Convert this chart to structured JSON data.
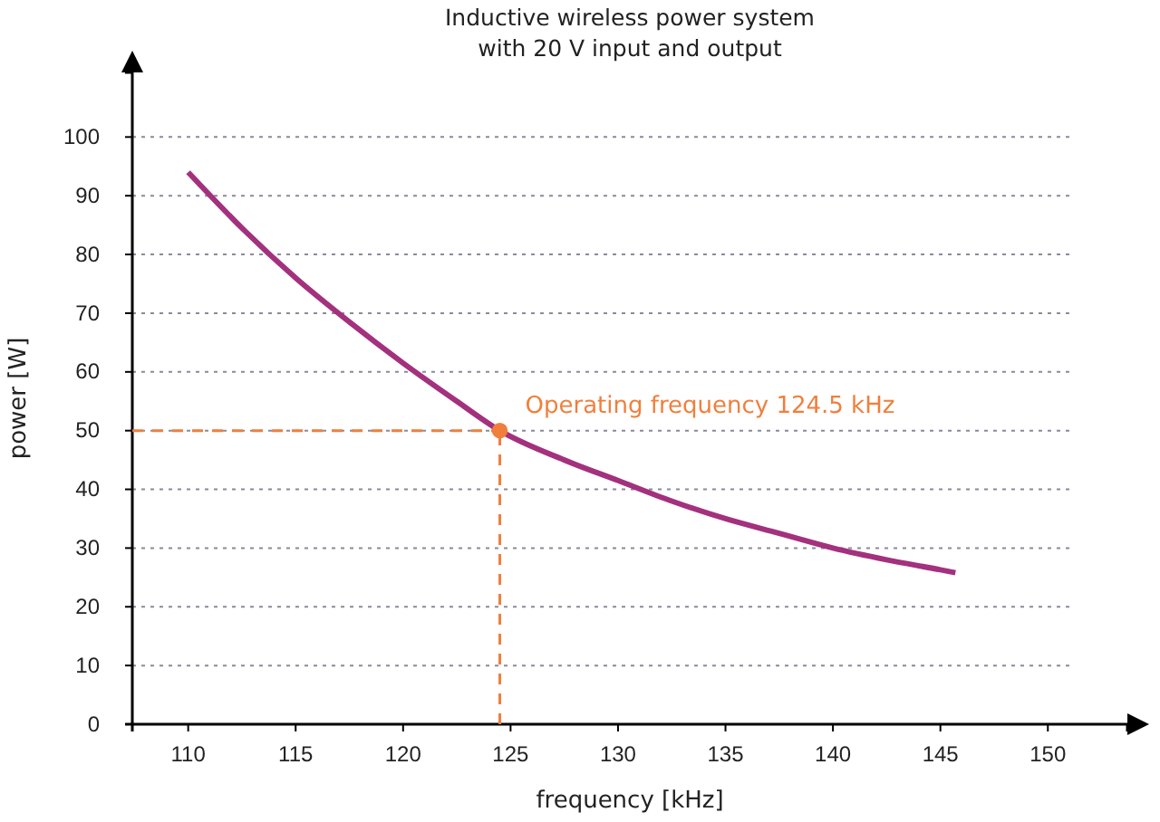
{
  "chart_data": {
    "type": "line",
    "title": "Inductive wireless power system\nwith 20 V input and output",
    "xlabel": "frequency [kHz]",
    "ylabel": "power [W]",
    "xlim": [
      107.4,
      153.7
    ],
    "ylim": [
      0,
      111
    ],
    "xticks": [
      110,
      115,
      120,
      125,
      130,
      135,
      140,
      145,
      150
    ],
    "yticks": [
      0,
      10,
      20,
      30,
      40,
      50,
      60,
      70,
      80,
      90,
      100
    ],
    "grid": "y",
    "series": [
      {
        "color": "#a3317e",
        "x": [
          110,
          112.5,
          115,
          117.5,
          120,
          122.5,
          124.5,
          127.5,
          130,
          132.5,
          135,
          137.5,
          140,
          142.5,
          145,
          145.7
        ],
        "values": [
          94,
          84.5,
          76,
          68.5,
          61.5,
          55,
          50,
          45,
          41.5,
          38,
          35,
          32.5,
          30,
          28,
          26.3,
          25.8
        ]
      },
      {
        "type": "scatter",
        "color": "#f07f3c",
        "marker": "circle",
        "x": [
          124.5
        ],
        "values": [
          50
        ]
      }
    ],
    "ref_lines": [
      {
        "axis": "y",
        "value": 50,
        "color": "#f07f3c",
        "line_style": "dashed"
      },
      {
        "axis": "x",
        "value": 124.5,
        "color": "#f07f3c",
        "line_style": "dashed"
      }
    ],
    "annotations": [
      {
        "text": "Operating frequency 124.5 kHz",
        "x": 124.5,
        "y": 50
      }
    ]
  }
}
